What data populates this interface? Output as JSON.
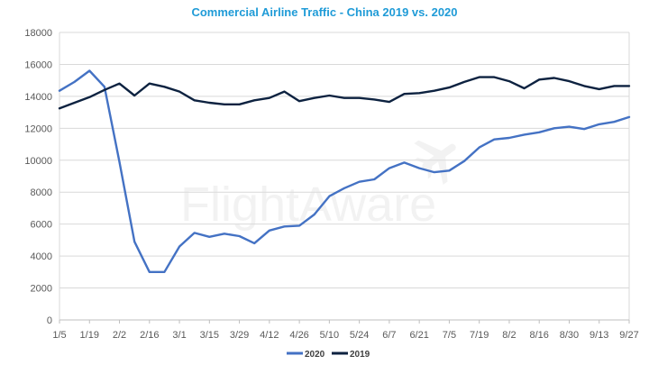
{
  "chart_data": {
    "type": "line",
    "title": "Commercial Airline Traffic - China 2019 vs. 2020",
    "watermark": "FlightAware",
    "xlabel": "",
    "ylabel": "",
    "ylim": [
      0,
      18000
    ],
    "y_ticks": [
      "0",
      "2000",
      "4000",
      "6000",
      "8000",
      "10000",
      "12000",
      "14000",
      "16000",
      "18000"
    ],
    "x_tick_labels": [
      "1/5",
      "1/19",
      "2/2",
      "2/16",
      "3/1",
      "3/15",
      "3/29",
      "4/12",
      "4/26",
      "5/10",
      "5/24",
      "6/7",
      "6/21",
      "7/5",
      "7/19",
      "8/2",
      "8/16",
      "8/30",
      "9/13",
      "9/27"
    ],
    "grid": true,
    "legend_position": "bottom",
    "x": [
      "1/5",
      "1/12",
      "1/19",
      "1/26",
      "2/2",
      "2/9",
      "2/16",
      "2/23",
      "3/1",
      "3/8",
      "3/15",
      "3/22",
      "3/29",
      "4/5",
      "4/12",
      "4/19",
      "4/26",
      "5/3",
      "5/10",
      "5/17",
      "5/24",
      "5/31",
      "6/7",
      "6/14",
      "6/21",
      "6/28",
      "7/5",
      "7/12",
      "7/19",
      "7/26",
      "8/2",
      "8/9",
      "8/16",
      "8/23",
      "8/30",
      "9/6",
      "9/13",
      "9/20",
      "9/27"
    ],
    "series": [
      {
        "name": "2020",
        "color": "#4472C4",
        "values": [
          14350,
          14900,
          15600,
          14600,
          9900,
          4900,
          3000,
          3000,
          4600,
          5450,
          5200,
          5400,
          5250,
          4800,
          5600,
          5850,
          5900,
          6600,
          7750,
          8250,
          8650,
          8800,
          9500,
          9850,
          9500,
          9250,
          9350,
          9950,
          10800,
          11300,
          11400,
          11600,
          11750,
          12000,
          12100,
          11950,
          12250,
          12400,
          12700
        ]
      },
      {
        "name": "2019",
        "color": "#0D2240",
        "values": [
          13250,
          13600,
          13950,
          14400,
          14800,
          14050,
          14800,
          14600,
          14300,
          13750,
          13600,
          13500,
          13500,
          13750,
          13900,
          14300,
          13700,
          13900,
          14050,
          13900,
          13900,
          13800,
          13650,
          14150,
          14200,
          14350,
          14550,
          14900,
          15200,
          15200,
          14950,
          14500,
          15050,
          15150,
          14950,
          14650,
          14450,
          14650,
          14650
        ]
      }
    ]
  }
}
